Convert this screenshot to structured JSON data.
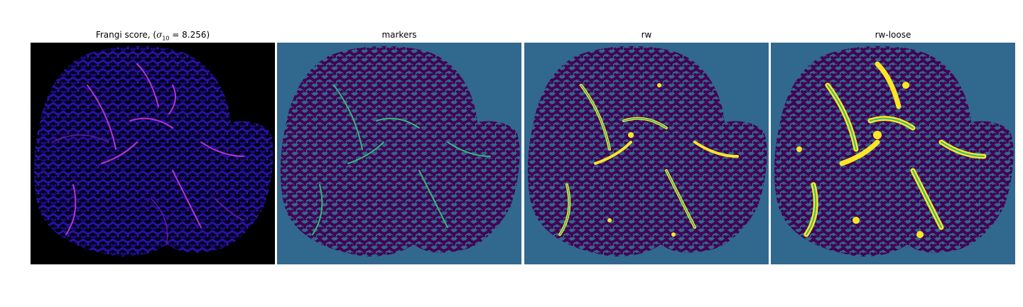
{
  "figure": {
    "panels": [
      {
        "title": "Frangi score, (σ₁₀ = 8.256)",
        "title_parts": {
          "prefix": "Frangi score, (",
          "symbol": "σ",
          "subscript": "10",
          "equals": " = ",
          "value": "8.256",
          "suffix": ")"
        },
        "colormap": "magma"
      },
      {
        "title": "markers",
        "colormap": "viridis"
      },
      {
        "title": "rw",
        "colormap": "viridis"
      },
      {
        "title": "rw-loose",
        "colormap": "viridis"
      }
    ],
    "colors": {
      "frangi_background": "#000000",
      "frangi_texture": "#1c0a8a",
      "frangi_highlight": "#c13dd6",
      "viridis_background": "#31688e",
      "viridis_tissue": "#440154",
      "viridis_marker": "#35b779",
      "viridis_segment": "#fde725"
    }
  }
}
